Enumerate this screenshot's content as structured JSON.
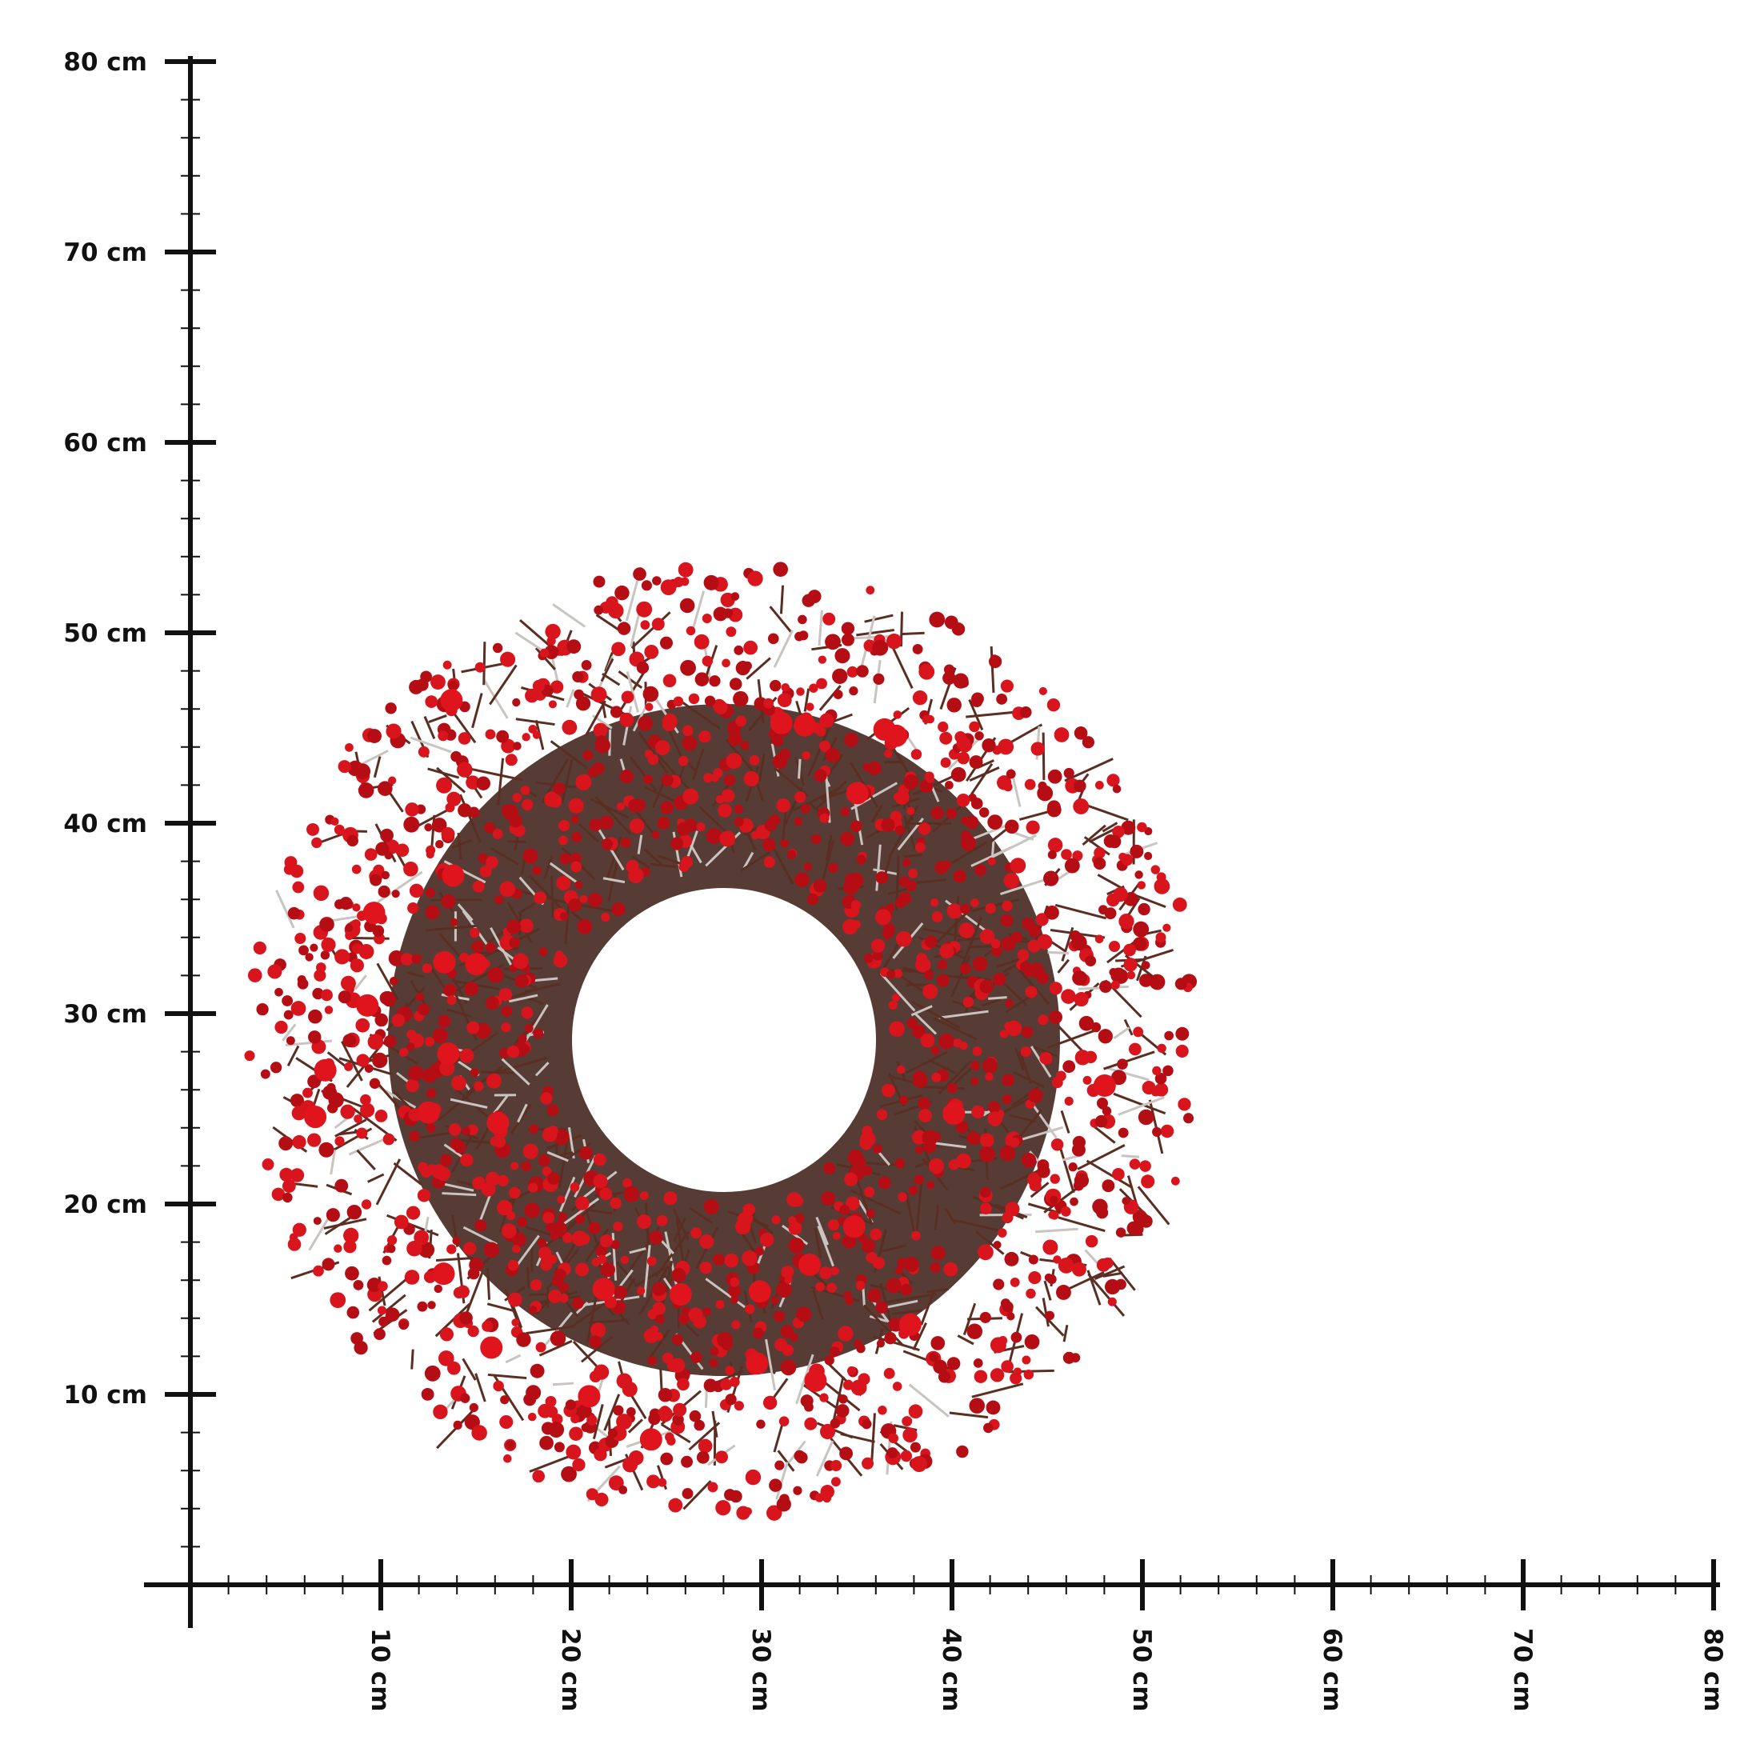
{
  "y_ruler": {
    "labels": [
      "10 cm",
      "20 cm",
      "30 cm",
      "40 cm",
      "50 cm",
      "60 cm",
      "70 cm",
      "80 cm"
    ]
  },
  "x_ruler": {
    "labels": [
      "10 cm",
      "20 cm",
      "30 cm",
      "40 cm",
      "50 cm",
      "60 cm",
      "70 cm",
      "80 cm"
    ]
  }
}
